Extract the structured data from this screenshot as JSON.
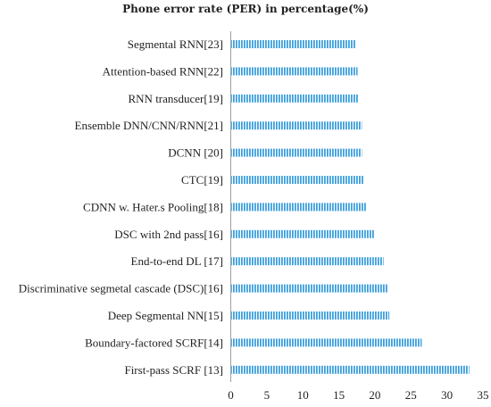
{
  "chart_data": {
    "type": "bar",
    "orientation": "horizontal",
    "title": "Phone error rate (PER) in percentage(%)",
    "xlabel": "",
    "ylabel": "",
    "xlim": [
      0,
      35
    ],
    "x_ticks": [
      "0",
      "5",
      "10",
      "15",
      "20",
      "25",
      "30",
      "35"
    ],
    "grid": false,
    "legend": "none",
    "bar_color": "#3d9fdc",
    "categories": [
      "Segmental RNN[23]",
      "Attention-based RNN[22]",
      "RNN transducer[19]",
      "Ensemble DNN/CNN/RNN[21]",
      "DCNN [20]",
      "CTC[19]",
      "CDNN w. Hater.s Pooling[18]",
      "DSC with 2nd pass[16]",
      "End-to-end DL [17]",
      "Discriminative segmetal cascade (DSC)[16]",
      "Deep Segmental NN[15]",
      "Boundary-factored SCRF[14]",
      "First-pass SCRF [13]"
    ],
    "values": [
      17.3,
      17.6,
      17.7,
      18.2,
      18.2,
      18.4,
      18.8,
      19.9,
      21.2,
      21.8,
      22.0,
      26.5,
      33.1
    ]
  }
}
